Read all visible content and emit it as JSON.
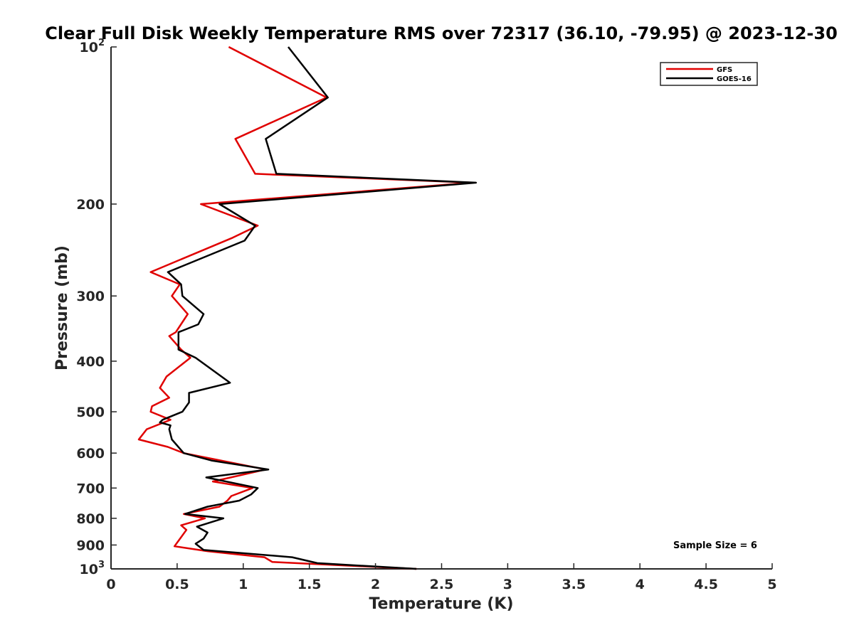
{
  "chart_data": {
    "type": "line",
    "title": "Clear Full Disk Weekly Temperature RMS over 72317 (36.10, -79.95) @ 2023-12-30",
    "xlabel": "Temperature (K)",
    "ylabel": "Pressure (mb)",
    "xlim": [
      0,
      5
    ],
    "ylim": [
      100,
      1000
    ],
    "yscale": "log",
    "y_reversed": true,
    "xticks": [
      "0",
      "0.5",
      "1",
      "1.5",
      "2",
      "2.5",
      "3",
      "3.5",
      "4",
      "4.5",
      "5"
    ],
    "yticks": [
      {
        "value": 100,
        "base": "10",
        "exp": "2"
      },
      {
        "value": 200,
        "label": "200"
      },
      {
        "value": 300,
        "label": "300"
      },
      {
        "value": 400,
        "label": "400"
      },
      {
        "value": 500,
        "label": "500"
      },
      {
        "value": 600,
        "label": "600"
      },
      {
        "value": 700,
        "label": "700"
      },
      {
        "value": 800,
        "label": "800"
      },
      {
        "value": 900,
        "label": "900"
      },
      {
        "value": 1000,
        "base": "10",
        "exp": "3"
      }
    ],
    "grid": false,
    "legend_position": "top-right",
    "annotation": "Sample Size = 6",
    "series": [
      {
        "name": "GFS",
        "color": "#e00000",
        "points": [
          [
            0.89,
            100
          ],
          [
            1.63,
            125
          ],
          [
            0.94,
            150
          ],
          [
            1.09,
            175
          ],
          [
            2.73,
            182
          ],
          [
            0.68,
            200
          ],
          [
            1.11,
            220
          ],
          [
            0.92,
            232
          ],
          [
            0.3,
            270
          ],
          [
            0.52,
            285
          ],
          [
            0.46,
            300
          ],
          [
            0.58,
            325
          ],
          [
            0.49,
            352
          ],
          [
            0.44,
            358
          ],
          [
            0.53,
            380
          ],
          [
            0.6,
            394
          ],
          [
            0.42,
            428
          ],
          [
            0.37,
            450
          ],
          [
            0.44,
            470
          ],
          [
            0.31,
            488
          ],
          [
            0.3,
            500
          ],
          [
            0.45,
            518
          ],
          [
            0.27,
            540
          ],
          [
            0.21,
            565
          ],
          [
            0.43,
            584
          ],
          [
            0.55,
            600
          ],
          [
            1.17,
            645
          ],
          [
            0.77,
            680
          ],
          [
            1.07,
            700
          ],
          [
            0.91,
            725
          ],
          [
            0.88,
            740
          ],
          [
            0.82,
            760
          ],
          [
            0.55,
            785
          ],
          [
            0.71,
            800
          ],
          [
            0.53,
            825
          ],
          [
            0.57,
            842
          ],
          [
            0.48,
            905
          ],
          [
            0.73,
            925
          ],
          [
            1.16,
            950
          ],
          [
            1.22,
            970
          ],
          [
            2.31,
            1000
          ]
        ]
      },
      {
        "name": "GOES-16",
        "color": "#000000",
        "points": [
          [
            1.34,
            100
          ],
          [
            1.64,
            125
          ],
          [
            1.17,
            150
          ],
          [
            1.25,
            175
          ],
          [
            2.76,
            182
          ],
          [
            0.82,
            200
          ],
          [
            1.09,
            220
          ],
          [
            1.01,
            235
          ],
          [
            0.43,
            270
          ],
          [
            0.53,
            285
          ],
          [
            0.54,
            300
          ],
          [
            0.7,
            325
          ],
          [
            0.66,
            340
          ],
          [
            0.51,
            352
          ],
          [
            0.51,
            380
          ],
          [
            0.64,
            394
          ],
          [
            0.9,
            440
          ],
          [
            0.59,
            460
          ],
          [
            0.59,
            480
          ],
          [
            0.54,
            500
          ],
          [
            0.39,
            518
          ],
          [
            0.37,
            524
          ],
          [
            0.45,
            531
          ],
          [
            0.44,
            540
          ],
          [
            0.46,
            565
          ],
          [
            0.55,
            600
          ],
          [
            0.76,
            620
          ],
          [
            1.19,
            645
          ],
          [
            0.72,
            668
          ],
          [
            1.11,
            700
          ],
          [
            1.06,
            720
          ],
          [
            0.97,
            740
          ],
          [
            0.73,
            760
          ],
          [
            0.56,
            785
          ],
          [
            0.85,
            800
          ],
          [
            0.65,
            830
          ],
          [
            0.73,
            852
          ],
          [
            0.7,
            875
          ],
          [
            0.64,
            895
          ],
          [
            0.7,
            920
          ],
          [
            1.37,
            950
          ],
          [
            1.56,
            975
          ],
          [
            2.31,
            1000
          ]
        ]
      }
    ]
  }
}
